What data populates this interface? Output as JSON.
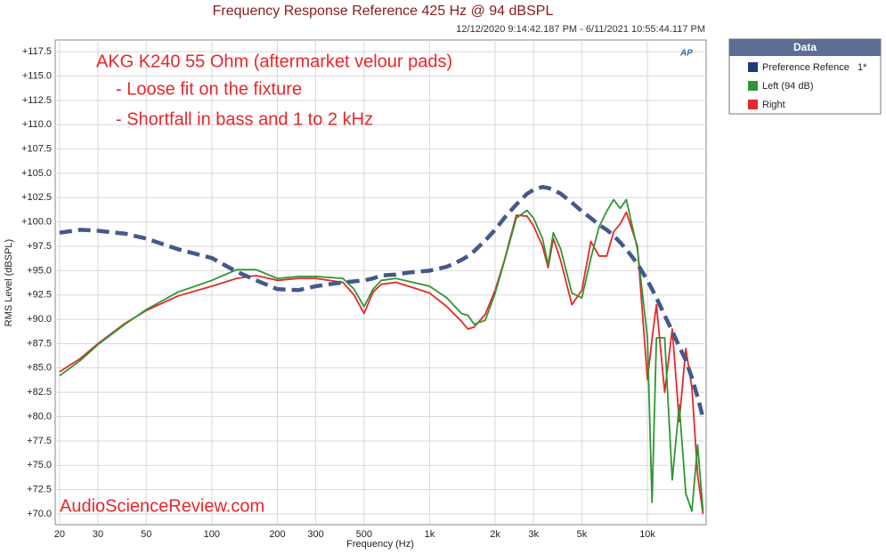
{
  "chart_data": {
    "type": "line",
    "title": "Frequency Response Reference 425 Hz @ 94 dBSPL",
    "subtitle": "12/12/2020 9:14:42.187 PM - 6/11/2021 10:55:44.117 PM",
    "x_label": "Frequency (Hz)",
    "y_label": "RMS Level (dBSPL)",
    "annotations": [
      "AKG K240 55 Ohm (aftermarket velour pads)",
      "- Loose fit on the fixture",
      "- Shortfall in bass and 1 to 2 kHz",
      "AudioScienceReview.com"
    ],
    "logo": "AP",
    "legend_title": "Data",
    "legend": "right-outside",
    "xscale": "log",
    "grid": true,
    "xlim": [
      19.1,
      18600
    ],
    "ylim": [
      68.9,
      118.7
    ],
    "xticks": [
      20,
      30,
      50,
      100,
      200,
      300,
      500,
      {
        "value": 1000,
        "label": "1k"
      },
      {
        "value": 2000,
        "label": "2k"
      },
      {
        "value": 3000,
        "label": "3k"
      },
      {
        "value": 5000,
        "label": "5k"
      },
      {
        "value": 10000,
        "label": "10k"
      }
    ],
    "yticks": [
      {
        "value": 70,
        "label": "+70.0"
      },
      {
        "value": 72.5,
        "label": "+72.5"
      },
      {
        "value": 75,
        "label": "+75.0"
      },
      {
        "value": 77.5,
        "label": "+77.5"
      },
      {
        "value": 80,
        "label": "+80.0"
      },
      {
        "value": 82.5,
        "label": "+82.5"
      },
      {
        "value": 85,
        "label": "+85.0"
      },
      {
        "value": 87.5,
        "label": "+87.5"
      },
      {
        "value": 90,
        "label": "+90.0"
      },
      {
        "value": 92.5,
        "label": "+92.5"
      },
      {
        "value": 95,
        "label": "+95.0"
      },
      {
        "value": 97.5,
        "label": "+97.5"
      },
      {
        "value": 100,
        "label": "+100.0"
      },
      {
        "value": 102.5,
        "label": "+102.5"
      },
      {
        "value": 105,
        "label": "+105.0"
      },
      {
        "value": 107.5,
        "label": "+107.5"
      },
      {
        "value": 110,
        "label": "+110.0"
      },
      {
        "value": 112.5,
        "label": "+112.5"
      },
      {
        "value": 115,
        "label": "+115.0"
      },
      {
        "value": 117.5,
        "label": "+117.5"
      }
    ],
    "x": [
      20,
      25,
      30,
      40,
      50,
      70,
      100,
      130,
      160,
      200,
      250,
      300,
      400,
      450,
      500,
      550,
      600,
      700,
      800,
      1000,
      1200,
      1400,
      1500,
      1600,
      1800,
      2000,
      2200,
      2500,
      2800,
      3000,
      3300,
      3500,
      3700,
      4000,
      4500,
      5000,
      5500,
      6000,
      6500,
      7000,
      7500,
      8000,
      9000,
      10000,
      10500,
      11000,
      12000,
      13000,
      14000,
      15000,
      16000,
      17000,
      18000
    ],
    "series": [
      {
        "name": "Preference Refence",
        "legend_note": "1*",
        "color": "#44598a",
        "swatch": "#1f3a7a",
        "style": "dashed",
        "values": [
          98.9,
          99.2,
          99.1,
          98.8,
          98.3,
          97.2,
          96.3,
          94.9,
          94.0,
          93.1,
          93.0,
          93.4,
          93.8,
          93.9,
          94.0,
          94.2,
          94.5,
          94.6,
          94.8,
          95.0,
          95.4,
          96.1,
          96.5,
          97.0,
          98.1,
          99.2,
          100.4,
          101.8,
          102.9,
          103.3,
          103.6,
          103.5,
          103.3,
          102.9,
          102.0,
          101.1,
          100.4,
          99.7,
          99.2,
          98.6,
          97.9,
          97.2,
          95.7,
          94.0,
          93.1,
          92.2,
          90.4,
          88.8,
          87.2,
          85.8,
          84.0,
          82.0,
          79.9
        ]
      },
      {
        "name": "Left (94 dB)",
        "color": "#2e9632",
        "style": "solid",
        "values": [
          84.2,
          85.8,
          87.4,
          89.5,
          91.0,
          92.8,
          94.0,
          95.1,
          95.1,
          94.2,
          94.4,
          94.4,
          94.2,
          93.1,
          91.3,
          93.1,
          94.0,
          94.2,
          93.9,
          93.4,
          92.2,
          90.6,
          90.4,
          89.5,
          89.9,
          92.7,
          95.9,
          100.4,
          101.2,
          100.4,
          98.3,
          95.6,
          98.9,
          97.2,
          92.7,
          92.2,
          96.3,
          99.5,
          101.1,
          102.3,
          101.4,
          102.3,
          97.2,
          88.1,
          71.2,
          88.1,
          88.1,
          73.5,
          81.2,
          72.1,
          70.3,
          77.1,
          70.3
        ]
      },
      {
        "name": "Right",
        "color": "#e6282a",
        "style": "solid",
        "values": [
          84.6,
          86.0,
          87.5,
          89.6,
          90.9,
          92.4,
          93.4,
          94.2,
          94.5,
          94.0,
          94.2,
          94.2,
          93.8,
          92.5,
          90.6,
          92.8,
          93.6,
          93.8,
          93.4,
          92.7,
          91.3,
          89.8,
          89.0,
          89.2,
          90.5,
          93.0,
          96.0,
          100.7,
          100.6,
          99.6,
          97.5,
          95.3,
          98.3,
          96.0,
          91.5,
          93.0,
          98.0,
          96.5,
          96.5,
          99.0,
          99.8,
          101.0,
          97.5,
          83.8,
          88.0,
          91.5,
          82.5,
          89.0,
          79.5,
          87.0,
          83.0,
          74.0,
          70.0
        ]
      }
    ]
  }
}
